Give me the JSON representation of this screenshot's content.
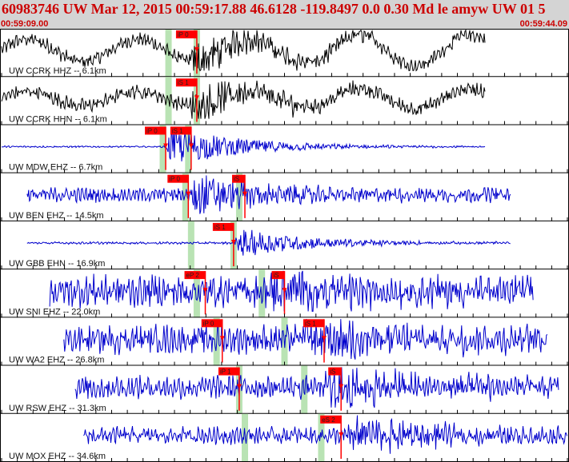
{
  "header": {
    "title": "60983746 UW Mar 12, 2015 00:59:17.88   46.6128 -119.8497  0.0 0.30 Md le amyw UW 01   5",
    "start_time": "00:59:09.00",
    "end_time": "00:59:44.09"
  },
  "colors": {
    "header_bg": "#d4d4d4",
    "header_text": "#cc0000",
    "trace_blue": "#0000cc",
    "trace_black": "#000000",
    "pick_red": "#ff0000",
    "window_green": "#b9e3b4"
  },
  "traces": [
    {
      "label": "UW CCRK HHZ -- 6.1km",
      "color": "black",
      "signal": {
        "start": 0.0,
        "end": 0.855,
        "onset": 0.33,
        "noise": 0.25,
        "burst": 1.0,
        "sine": 0.55
      },
      "picks": [
        {
          "label": "iP 0",
          "t": 0.345
        }
      ],
      "windows": [
        0.295,
        0.345
      ]
    },
    {
      "label": "UW CCRK HHN -- 6.1km",
      "color": "black",
      "signal": {
        "start": 0.0,
        "end": 0.855,
        "onset": 0.33,
        "noise": 0.25,
        "burst": 1.0,
        "sine": 0.35
      },
      "picks": [
        {
          "label": "iS 1",
          "t": 0.345
        }
      ],
      "windows": [
        0.295,
        0.345
      ]
    },
    {
      "label": "UW MDW EHZ -- 6.7km",
      "color": "blue",
      "signal": {
        "start": 0.0,
        "end": 0.855,
        "onset": 0.29,
        "noise": 0.03,
        "burst": 1.0,
        "sine": 0.0
      },
      "picks": [
        {
          "label": "iP 0",
          "t": 0.29
        },
        {
          "label": "iS 1",
          "t": 0.335
        }
      ],
      "windows": [
        0.285,
        0.33
      ]
    },
    {
      "label": "UW BEN EHZ -- 14.5km",
      "color": "blue",
      "signal": {
        "start": 0.045,
        "end": 0.9,
        "onset": 0.33,
        "noise": 0.25,
        "burst": 1.0,
        "sine": 0.0
      },
      "picks": [
        {
          "label": "iP 0",
          "t": 0.33
        },
        {
          "label": "iS",
          "t": 0.43
        }
      ],
      "windows": [
        0.325,
        0.42
      ]
    },
    {
      "label": "UW GBB EHN -- 16.9km",
      "color": "blue",
      "signal": {
        "start": 0.045,
        "end": 0.9,
        "onset": 0.41,
        "noise": 0.04,
        "burst": 0.75,
        "sine": 0.0
      },
      "picks": [
        {
          "label": "iS 1",
          "t": 0.41
        }
      ],
      "windows": [
        0.335,
        0.41
      ]
    },
    {
      "label": "UW SNI EHZ -- 22.0km",
      "color": "blue",
      "signal": {
        "start": 0.085,
        "end": 0.94,
        "onset": 0.47,
        "noise": 0.55,
        "burst": 1.0,
        "sine": 0.0
      },
      "picks": [
        {
          "label": "eP 2",
          "t": 0.36
        },
        {
          "label": "iS",
          "t": 0.5
        }
      ],
      "windows": [
        0.345,
        0.46
      ]
    },
    {
      "label": "UW WA2 EHZ -- 26.8km",
      "color": "blue",
      "signal": {
        "start": 0.11,
        "end": 0.965,
        "onset": 0.53,
        "noise": 0.5,
        "burst": 1.0,
        "sine": 0.0
      },
      "picks": [
        {
          "label": "iP 0",
          "t": 0.39
        },
        {
          "label": "iS 1",
          "t": 0.57
        }
      ],
      "windows": [
        0.38,
        0.5
      ]
    },
    {
      "label": "UW RSW EHZ -- 31.3km",
      "color": "blue",
      "signal": {
        "start": 0.13,
        "end": 0.985,
        "onset": 0.57,
        "noise": 0.4,
        "burst": 1.0,
        "sine": 0.0
      },
      "picks": [
        {
          "label": "iP 1",
          "t": 0.42
        },
        {
          "label": "iS",
          "t": 0.6
        }
      ],
      "windows": [
        0.42,
        0.535
      ]
    },
    {
      "label": "UW MOX EHZ -- 34.6km",
      "color": "blue",
      "signal": {
        "start": 0.145,
        "end": 1.0,
        "onset": 0.61,
        "noise": 0.3,
        "burst": 1.0,
        "sine": 0.0
      },
      "picks": [
        {
          "label": "eS 2",
          "t": 0.6
        }
      ],
      "windows": [
        0.43,
        0.565
      ]
    }
  ]
}
